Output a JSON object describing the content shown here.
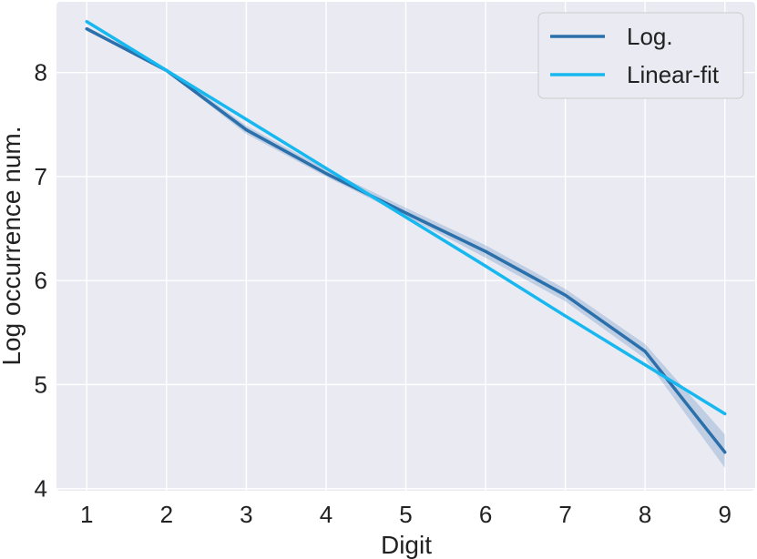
{
  "chart_data": {
    "type": "line",
    "title": "",
    "xlabel": "Digit",
    "ylabel": "Log occurrence num.",
    "x": [
      1,
      2,
      3,
      4,
      5,
      6,
      7,
      8,
      9
    ],
    "xticks": [
      "1",
      "2",
      "3",
      "4",
      "5",
      "6",
      "7",
      "8",
      "9"
    ],
    "yticks": [
      "4",
      "5",
      "6",
      "7",
      "8"
    ],
    "xlim": [
      0.62,
      9.38
    ],
    "ylim": [
      3.98,
      8.68
    ],
    "grid": true,
    "legend_position": "top-right",
    "series": [
      {
        "name": "Log.",
        "color": "#2b6fab",
        "values": [
          8.42,
          8.02,
          7.45,
          7.03,
          6.65,
          6.28,
          5.86,
          5.32,
          4.35
        ],
        "band_lower": [
          8.4,
          8.01,
          7.41,
          7.0,
          6.62,
          6.22,
          5.8,
          5.25,
          4.2
        ],
        "band_upper": [
          8.44,
          8.04,
          7.49,
          7.07,
          6.7,
          6.34,
          5.92,
          5.39,
          4.52
        ]
      },
      {
        "name": "Linear-fit",
        "color": "#17b7ef",
        "values": [
          8.49,
          8.02,
          7.55,
          7.08,
          6.61,
          6.14,
          5.66,
          5.19,
          4.72
        ]
      }
    ],
    "background_color": "#eaeaf2",
    "grid_color": "#ffffff"
  }
}
